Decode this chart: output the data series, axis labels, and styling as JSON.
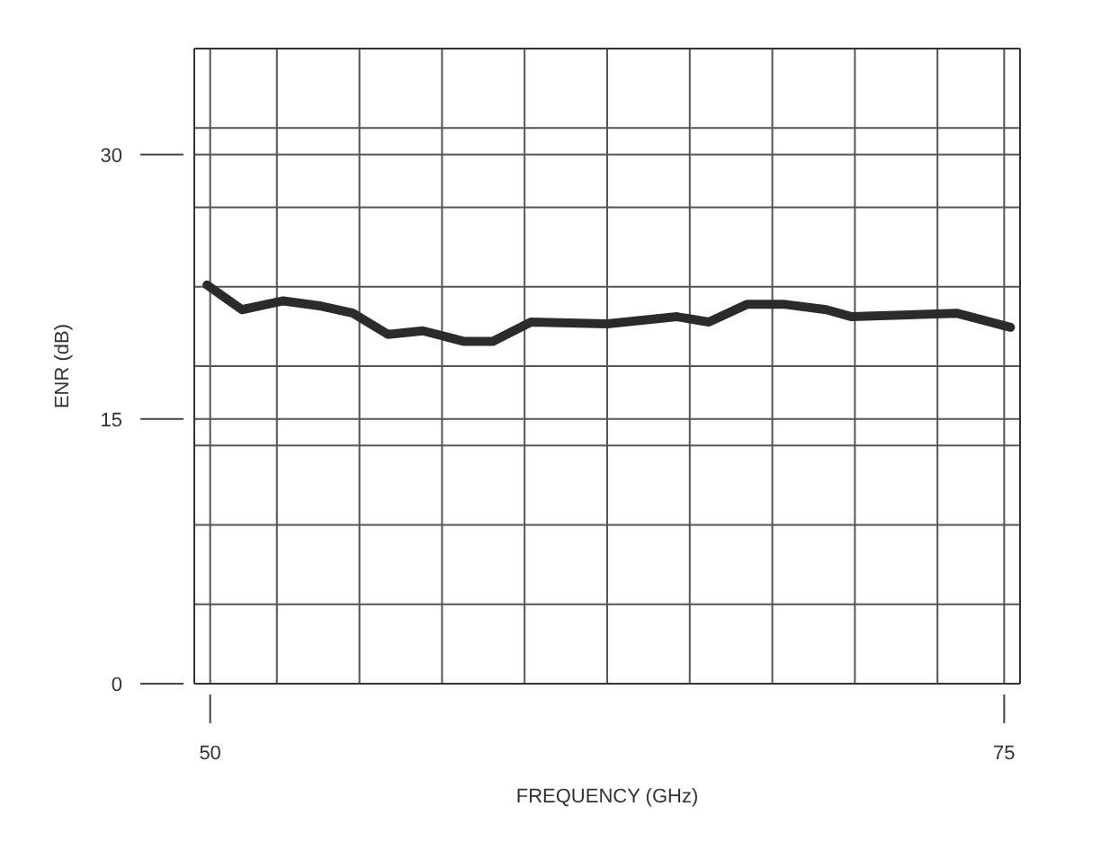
{
  "chart_data": {
    "type": "line",
    "xlabel": "FREQUENCY (GHz)",
    "ylabel": "ENR (dB)",
    "x": [
      49.9,
      51.0,
      52.3,
      53.5,
      54.5,
      55.6,
      56.7,
      58.0,
      58.9,
      60.1,
      62.5,
      64.7,
      65.7,
      66.9,
      68.1,
      69.4,
      70.2,
      73.5,
      75.2
    ],
    "series": [
      {
        "color": "#2b2b2b",
        "values": [
          22.6,
          21.2,
          21.7,
          21.4,
          21.0,
          19.8,
          20.0,
          19.4,
          19.4,
          20.5,
          20.4,
          20.8,
          20.5,
          21.5,
          21.5,
          21.2,
          20.8,
          21.0,
          20.2
        ]
      }
    ],
    "xlim": [
      49.5,
      75.5
    ],
    "xticks": [
      50,
      {
        "value": 52.1,
        "label": null
      },
      {
        "value": 54.7,
        "label": null
      },
      {
        "value": 57.3,
        "label": null
      },
      {
        "value": 59.9,
        "label": null
      },
      {
        "value": 62.5,
        "label": null
      },
      {
        "value": 65.1,
        "label": null
      },
      {
        "value": 67.7,
        "label": null
      },
      {
        "value": 70.3,
        "label": null
      },
      {
        "value": 72.9,
        "label": null
      },
      75
    ],
    "ylim": [
      0,
      36
    ],
    "yticks": [
      0,
      {
        "value": 4.5,
        "label": null
      },
      {
        "value": 9,
        "label": null
      },
      {
        "value": 13.5,
        "label": null
      },
      15,
      {
        "value": 18,
        "label": null
      },
      {
        "value": 22.5,
        "label": null
      },
      {
        "value": 27,
        "label": null
      },
      30,
      {
        "value": 31.5,
        "label": null
      }
    ],
    "grid": true,
    "marker": "none",
    "line_style": "solid"
  }
}
